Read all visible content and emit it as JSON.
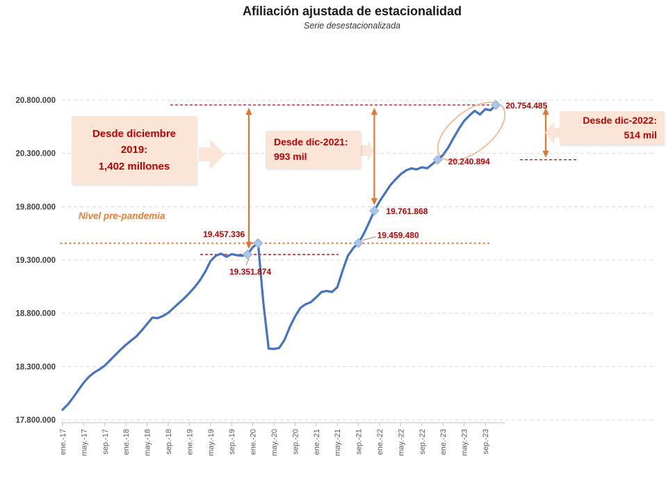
{
  "title": "Afiliación ajustada de estacionalidad",
  "subtitle": "Serie desestacionalizada",
  "pre_pandemic_label": "Nivel pre-pandemia",
  "boxes": {
    "dec2019": {
      "lines": [
        "Desde diciembre",
        "2019:",
        "1,402 millones"
      ]
    },
    "dec2021": {
      "lines": [
        "Desde dic-2021:",
        "993 mil"
      ]
    },
    "dec2022": {
      "lines": [
        "Desde dic-2022:",
        "514 mil"
      ]
    }
  },
  "colors": {
    "series_line": "#4472C4",
    "marker_fill": "#A9C7E9",
    "marker_border": "#8FAFD6",
    "data_label": "#C00000",
    "dark_red_dash": "#C00000",
    "orange_dotted": "#ED7D31",
    "arrow_orange": "#E8732A",
    "box_fill": "#FBE5D6",
    "ellipse": "#F4B183",
    "gridline": "#D9D9D9",
    "axis_line": "#BFBFBF",
    "axis_text": "#595959",
    "y_label_text": "#404040",
    "leader_line": "#7F7F7F"
  },
  "chart_data": {
    "type": "line",
    "title": "Afiliación ajustada de estacionalidad",
    "subtitle": "Serie desestacionalizada",
    "start_month": "2017-01",
    "end_month": "2023-11",
    "ylim": [
      17800000,
      20800000
    ],
    "grid": true,
    "legend": false,
    "y_ticks": [
      {
        "label": "20.800.000",
        "value": 20800000
      },
      {
        "label": "20.300.000",
        "value": 20300000
      },
      {
        "label": "19.800.000",
        "value": 19800000
      },
      {
        "label": "19.300.000",
        "value": 19300000
      },
      {
        "label": "18.800.000",
        "value": 18800000
      },
      {
        "label": "18.300.000",
        "value": 18300000
      },
      {
        "label": "17.800.000",
        "value": 17800000
      }
    ],
    "x_tick_labels": [
      "ene.-17",
      "may.-17",
      "sep.-17",
      "ene.-18",
      "may.-18",
      "sep.-18",
      "ene.-19",
      "may.-19",
      "sep.-19",
      "ene.-20",
      "may.-20",
      "sep.-20",
      "ene.-21",
      "may.-21",
      "sep.-21",
      "ene.-22",
      "may.-22",
      "sep.-22",
      "ene.-23",
      "may.-23",
      "sep.-23"
    ],
    "x_tick_month_step": 4,
    "series": [
      {
        "name": "Serie desestacionalizada",
        "values": [
          17895000,
          17945000,
          18010000,
          18080000,
          18150000,
          18205000,
          18245000,
          18275000,
          18310000,
          18360000,
          18410000,
          18460000,
          18505000,
          18545000,
          18585000,
          18640000,
          18700000,
          18760000,
          18755000,
          18775000,
          18805000,
          18850000,
          18895000,
          18940000,
          18990000,
          19045000,
          19110000,
          19190000,
          19290000,
          19340000,
          19360000,
          19330000,
          19355000,
          19345000,
          19340000,
          19351874,
          19420000,
          19457336,
          18900000,
          18470000,
          18465000,
          18475000,
          18550000,
          18670000,
          18770000,
          18850000,
          18885000,
          18905000,
          18950000,
          19000000,
          19010000,
          19000000,
          19045000,
          19200000,
          19340000,
          19410000,
          19459480,
          19545000,
          19650000,
          19761868,
          19850000,
          19925000,
          20000000,
          20055000,
          20105000,
          20140000,
          20160000,
          20150000,
          20170000,
          20160000,
          20200000,
          20240894,
          20285000,
          20355000,
          20445000,
          20530000,
          20605000,
          20655000,
          20700000,
          20665000,
          20715000,
          20705000,
          20754485
        ]
      }
    ],
    "highlighted_points": [
      {
        "month_index": 35,
        "date": "dic-2019",
        "value": 19351874,
        "label": "19.351.874"
      },
      {
        "month_index": 37,
        "date": "feb-2020",
        "value": 19457336,
        "label": "19.457.336"
      },
      {
        "month_index": 56,
        "date": "sep-2021",
        "value": 19459480,
        "label": "19.459.480"
      },
      {
        "month_index": 59,
        "date": "dic-2021",
        "value": 19761868,
        "label": "19.761.868"
      },
      {
        "month_index": 71,
        "date": "dic-2022",
        "value": 20240894,
        "label": "20.240.894"
      },
      {
        "month_index": 82,
        "date": "nov-2023",
        "value": 20754485,
        "label": "20.754.485"
      }
    ],
    "reference_lines": [
      {
        "name": "nivel-pre-pandemia",
        "value": 19457336,
        "style": "orange-dotted"
      },
      {
        "name": "nivel-maximo-actual",
        "value": 20754485,
        "style": "darkred-dashed"
      },
      {
        "name": "nivel-dic-2019",
        "value": 19351874,
        "style": "darkred-dashed"
      },
      {
        "name": "nivel-dic-2022",
        "value": 20240894,
        "style": "darkred-dashed"
      }
    ],
    "deltas": [
      {
        "from": "dic-2019",
        "to": "nov-2023",
        "text": "1,402 millones"
      },
      {
        "from": "dic-2021",
        "to": "nov-2023",
        "text": "993 mil"
      },
      {
        "from": "dic-2022",
        "to": "nov-2023",
        "text": "514 mil"
      }
    ]
  }
}
